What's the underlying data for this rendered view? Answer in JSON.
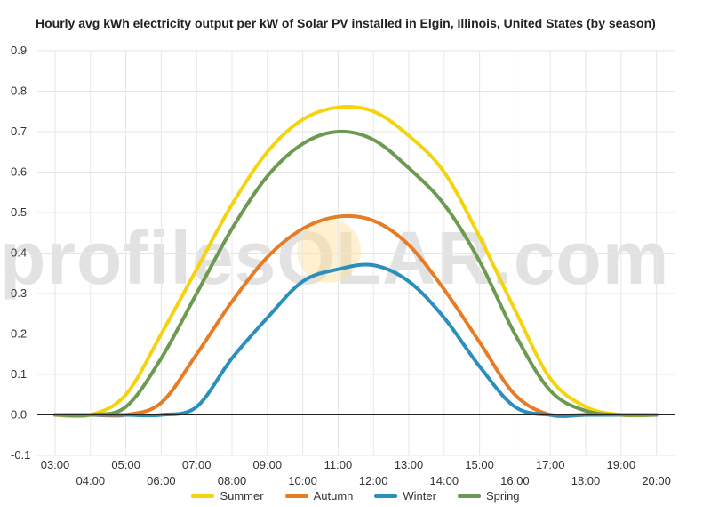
{
  "chart_data": {
    "type": "line",
    "title": "Hourly avg kWh electricity output per kW of Solar PV installed in Elgin, Illinois, United States (by season)",
    "xlabel": "",
    "ylabel": "",
    "ylim": [
      -0.1,
      0.9
    ],
    "yticks": [
      "-0.1",
      "0.0",
      "0.1",
      "0.2",
      "0.3",
      "0.4",
      "0.5",
      "0.6",
      "0.7",
      "0.8",
      "0.9"
    ],
    "x": [
      3,
      4,
      5,
      6,
      7,
      8,
      9,
      10,
      11,
      12,
      13,
      14,
      15,
      16,
      17,
      18,
      19,
      20
    ],
    "x_tick_labels": [
      "03:00",
      "04:00",
      "05:00",
      "06:00",
      "07:00",
      "08:00",
      "09:00",
      "10:00",
      "11:00",
      "12:00",
      "13:00",
      "14:00",
      "15:00",
      "16:00",
      "17:00",
      "18:00",
      "19:00",
      "20:00"
    ],
    "grid": true,
    "legend_position": "bottom",
    "series": [
      {
        "name": "Summer",
        "color": "#f5d40f",
        "values": [
          0.0,
          0.0,
          0.05,
          0.2,
          0.36,
          0.52,
          0.65,
          0.73,
          0.76,
          0.75,
          0.69,
          0.6,
          0.44,
          0.26,
          0.09,
          0.02,
          0.0,
          0.0
        ]
      },
      {
        "name": "Autumn",
        "color": "#e67c26",
        "values": [
          0.0,
          0.0,
          0.0,
          0.03,
          0.15,
          0.28,
          0.39,
          0.46,
          0.49,
          0.48,
          0.42,
          0.31,
          0.18,
          0.05,
          0.0,
          0.0,
          0.0,
          0.0
        ]
      },
      {
        "name": "Winter",
        "color": "#2a8fbd",
        "values": [
          0.0,
          0.0,
          0.0,
          0.0,
          0.02,
          0.14,
          0.24,
          0.33,
          0.36,
          0.37,
          0.33,
          0.24,
          0.12,
          0.02,
          0.0,
          0.0,
          0.0,
          0.0
        ]
      },
      {
        "name": "Spring",
        "color": "#6b9a50",
        "values": [
          0.0,
          0.0,
          0.02,
          0.14,
          0.3,
          0.46,
          0.59,
          0.67,
          0.7,
          0.68,
          0.61,
          0.52,
          0.38,
          0.2,
          0.06,
          0.01,
          0.0,
          0.0
        ]
      }
    ]
  },
  "watermark": {
    "text": "profilesOLAR.com"
  }
}
